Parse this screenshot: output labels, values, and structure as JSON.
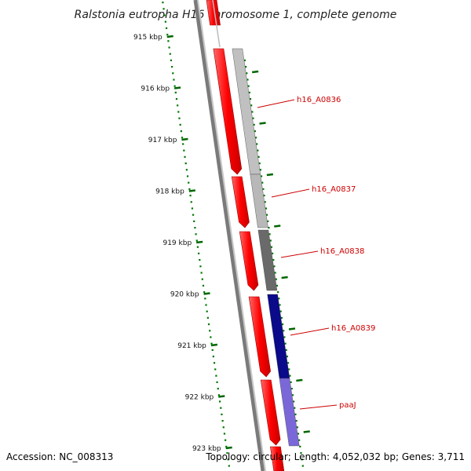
{
  "title": "Ralstonia eutropha H16 chromosome 1, complete genome",
  "footer": {
    "accession": "Accession: NC_008313",
    "summary": "Topology: circular; Length: 4,052,032 bp; Genes: 3,711"
  },
  "ticks": [
    {
      "label": "915 kbp"
    },
    {
      "label": "916 kbp"
    },
    {
      "label": "917 kbp"
    },
    {
      "label": "918 kbp"
    },
    {
      "label": "919 kbp"
    },
    {
      "label": "920 kbp"
    },
    {
      "label": "921 kbp"
    },
    {
      "label": "922 kbp"
    },
    {
      "label": "923 kbp"
    }
  ],
  "genes": [
    {
      "label": "h16_A0836",
      "color": "#c0c0c0"
    },
    {
      "label": "h16_A0837",
      "color": "#b8b8b8"
    },
    {
      "label": "h16_A0838",
      "color": "#6a6a6a"
    },
    {
      "label": "h16_A0839",
      "color": "#0a0a8a"
    },
    {
      "label": "paaJ",
      "color": "#7b68d8"
    }
  ],
  "colors": {
    "cds_track": "#ff0000",
    "backbone": "#808080",
    "tick_marks": "#006600",
    "label_text": "#cc0000"
  }
}
